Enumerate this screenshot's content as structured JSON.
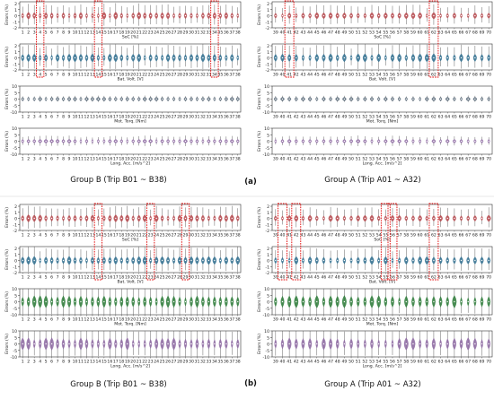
{
  "captions": {
    "groupB_a": "Group B (Trip B01 ~ B38)",
    "groupA_a": "Group A (Trip A01 ~ A32)",
    "panel_a": "(a)",
    "groupB_b": "Group B (Trip B01 ~ B38)",
    "groupA_b": "Group A (Trip A01 ~ A32)",
    "panel_b": "(b)"
  },
  "colors": {
    "soc": "#b5474b",
    "volt": "#2f6f8f",
    "torq_a": "#5a6b7a",
    "torq_b": "#2e7d3a",
    "acc": "#8e6aa3",
    "highlight": "#e00000",
    "axis": "#333333"
  },
  "chart_data": [
    {
      "id": "a-B",
      "type": "violin",
      "panel": "(a)",
      "group": "Group B (Trip B01 ~ B38)",
      "trips": [
        1,
        2,
        3,
        4,
        5,
        6,
        7,
        8,
        9,
        10,
        11,
        12,
        13,
        14,
        15,
        16,
        17,
        18,
        19,
        20,
        21,
        22,
        23,
        24,
        25,
        26,
        27,
        28,
        29,
        30,
        31,
        32,
        33,
        34,
        35,
        36,
        37,
        38
      ],
      "ylabel": "Errors (%)",
      "highlight": [
        4,
        14,
        34
      ],
      "subplots": [
        {
          "key": "soc",
          "xlabel": "SoC [%]",
          "yticks": [
            -2,
            -1,
            0,
            1,
            2
          ],
          "ylim": [
            -2,
            2.3
          ],
          "spread": 0.45
        },
        {
          "key": "volt",
          "xlabel": "Bat. Volt. [V]",
          "yticks": [
            -2,
            -1,
            0,
            1,
            2
          ],
          "ylim": [
            -2,
            2.3
          ],
          "spread": 0.5
        },
        {
          "key": "torq",
          "xlabel": "Mot. Torq. [Nm]",
          "yticks": [
            -10,
            -5,
            0,
            5,
            10
          ],
          "ylim": [
            -10,
            10
          ],
          "spread": 0.6
        },
        {
          "key": "acc",
          "xlabel": "Long. Acc. [m/s^2]",
          "yticks": [
            -10,
            -5,
            0,
            5,
            10
          ],
          "ylim": [
            -10,
            10
          ],
          "spread": 1.0
        }
      ]
    },
    {
      "id": "a-A",
      "type": "violin",
      "panel": "(a)",
      "group": "Group A (Trip A01 ~ A32)",
      "trips": [
        39,
        40,
        41,
        42,
        43,
        44,
        45,
        46,
        47,
        48,
        49,
        50,
        51,
        52,
        53,
        54,
        55,
        56,
        57,
        58,
        59,
        60,
        61,
        62,
        63,
        64,
        65,
        66,
        67,
        68,
        69,
        70
      ],
      "ylabel": "Errors (%)",
      "highlight": [
        41,
        62
      ],
      "subplots": [
        {
          "key": "soc",
          "xlabel": "SoC [%]",
          "yticks": [
            -2,
            -1,
            0,
            1,
            2
          ],
          "ylim": [
            -2,
            2.3
          ],
          "spread": 0.4
        },
        {
          "key": "volt",
          "xlabel": "Bat. Volt. [V]",
          "yticks": [
            -2,
            -1,
            0,
            1,
            2
          ],
          "ylim": [
            -2,
            2.3
          ],
          "spread": 0.5
        },
        {
          "key": "torq",
          "xlabel": "Mot. Torq. [Nm]",
          "yticks": [
            -10,
            -5,
            0,
            5,
            10
          ],
          "ylim": [
            -10,
            10
          ],
          "spread": 0.6
        },
        {
          "key": "acc",
          "xlabel": "Long. Acc. [m/s^2]",
          "yticks": [
            -10,
            -5,
            0,
            5,
            10
          ],
          "ylim": [
            -10,
            10
          ],
          "spread": 1.0
        }
      ]
    },
    {
      "id": "b-B",
      "type": "violin",
      "panel": "(b)",
      "group": "Group B (Trip B01 ~ B38)",
      "trips": [
        1,
        2,
        3,
        4,
        5,
        6,
        7,
        8,
        9,
        10,
        11,
        12,
        13,
        14,
        15,
        16,
        17,
        18,
        19,
        20,
        21,
        22,
        23,
        24,
        25,
        26,
        27,
        28,
        29,
        30,
        31,
        32,
        33,
        34,
        35,
        36,
        37,
        38
      ],
      "ylabel": "Errors (%)",
      "highlight": [
        14,
        23,
        29
      ],
      "subplots": [
        {
          "key": "soc",
          "xlabel": "SoC [%]",
          "yticks": [
            -2,
            -1,
            0,
            1,
            2
          ],
          "ylim": [
            -2,
            2.3
          ],
          "spread": 0.45
        },
        {
          "key": "volt",
          "xlabel": "Bat. Volt. [V]",
          "yticks": [
            -2,
            -1,
            0,
            1,
            2
          ],
          "ylim": [
            -2,
            2.3
          ],
          "spread": 0.5
        },
        {
          "key": "torq",
          "xlabel": "Mot. Torq. [Nm]",
          "yticks": [
            -10,
            -5,
            0,
            5,
            10
          ],
          "ylim": [
            -10,
            10
          ],
          "spread": 3.5
        },
        {
          "key": "acc",
          "xlabel": "Long. Acc. [m/s^2]",
          "yticks": [
            -10,
            -5,
            0,
            5,
            10
          ],
          "ylim": [
            -10,
            10
          ],
          "spread": 3.5
        }
      ]
    },
    {
      "id": "b-A",
      "type": "violin",
      "panel": "(b)",
      "group": "Group A (Trip A01 ~ A32)",
      "trips": [
        39,
        40,
        41,
        42,
        43,
        44,
        45,
        46,
        47,
        48,
        49,
        50,
        51,
        52,
        53,
        54,
        55,
        56,
        57,
        58,
        59,
        60,
        61,
        62,
        63,
        64,
        65,
        66,
        67,
        68,
        69,
        70
      ],
      "ylabel": "Errors (%)",
      "highlight": [
        40,
        42,
        55,
        56,
        62
      ],
      "subplots": [
        {
          "key": "soc",
          "xlabel": "SoC [%]",
          "yticks": [
            -2,
            -1,
            0,
            1,
            2
          ],
          "ylim": [
            -2,
            2.3
          ],
          "spread": 0.4
        },
        {
          "key": "volt",
          "xlabel": "Bat. Volt. [V]",
          "yticks": [
            -2,
            -1,
            0,
            1,
            2
          ],
          "ylim": [
            -2,
            2.3
          ],
          "spread": 0.5
        },
        {
          "key": "torq",
          "xlabel": "Mot. Torq. [Nm]",
          "yticks": [
            -10,
            -5,
            0,
            5,
            10
          ],
          "ylim": [
            -10,
            10
          ],
          "spread": 3.5
        },
        {
          "key": "acc",
          "xlabel": "Long. Acc. [m/s^2]",
          "yticks": [
            -10,
            -5,
            0,
            5,
            10
          ],
          "ylim": [
            -10,
            10
          ],
          "spread": 3.5
        }
      ]
    }
  ]
}
